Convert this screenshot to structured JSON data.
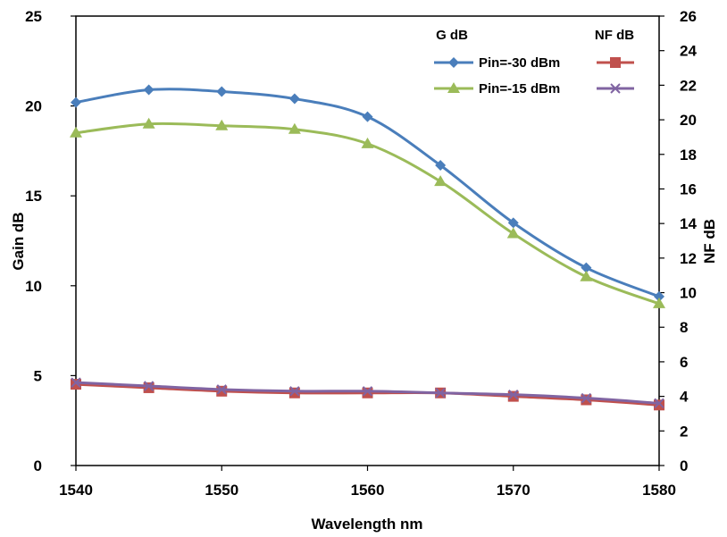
{
  "chart_data": {
    "type": "line",
    "xlabel": "Wavelength nm",
    "ylabel_left": "Gain dB",
    "ylabel_right": "NF dB",
    "xlim": [
      1540,
      1580
    ],
    "ylim_left": [
      0,
      25
    ],
    "ylim_right": [
      0,
      26
    ],
    "x_ticks": [
      1540,
      1550,
      1560,
      1570,
      1580
    ],
    "y_left_ticks": [
      0,
      5,
      10,
      15,
      20,
      25
    ],
    "y_right_ticks": [
      0,
      2,
      4,
      6,
      8,
      10,
      12,
      14,
      16,
      18,
      20,
      22,
      24,
      26
    ],
    "grid": false,
    "legend_position": "top-right",
    "legend_headers": {
      "gain": "G dB",
      "nf": "NF dB"
    },
    "x": [
      1540,
      1545,
      1550,
      1555,
      1560,
      1565,
      1570,
      1575,
      1580
    ],
    "series": [
      {
        "name": "Pin=-30 dBm",
        "axis": "left",
        "group": "gain",
        "color": "#4a7ebb",
        "marker": "diamond",
        "values": [
          20.2,
          20.9,
          20.8,
          20.4,
          19.4,
          16.7,
          13.5,
          11.0,
          9.4
        ]
      },
      {
        "name": "Pin=-15 dBm",
        "axis": "left",
        "group": "gain",
        "color": "#9bbb59",
        "marker": "triangle",
        "values": [
          18.5,
          19.0,
          18.9,
          18.7,
          17.9,
          15.8,
          12.9,
          10.5,
          9.0
        ]
      },
      {
        "name": "Pin=-30 dBm",
        "axis": "right",
        "group": "nf",
        "color": "#c0504d",
        "marker": "square",
        "values": [
          4.7,
          4.5,
          4.3,
          4.2,
          4.2,
          4.2,
          4.0,
          3.8,
          3.5
        ]
      },
      {
        "name": "Pin=-15 dBm",
        "axis": "right",
        "group": "nf",
        "color": "#8064a2",
        "marker": "x",
        "values": [
          4.8,
          4.6,
          4.4,
          4.3,
          4.3,
          4.2,
          4.1,
          3.9,
          3.6
        ]
      }
    ]
  }
}
